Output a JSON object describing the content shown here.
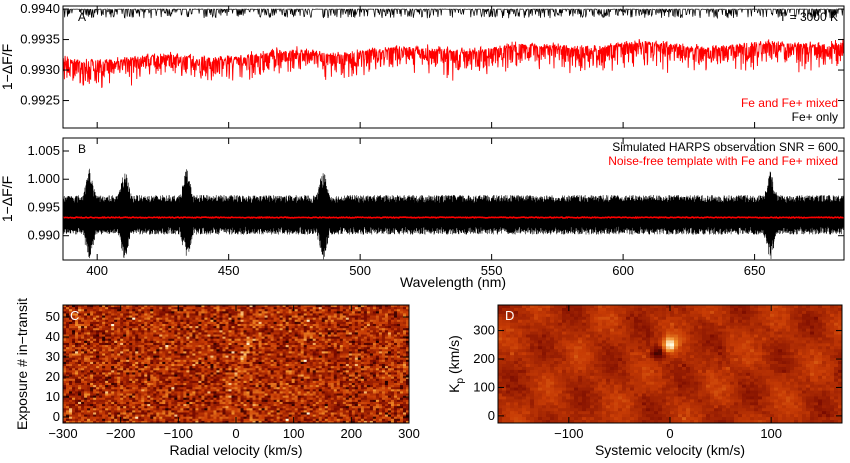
{
  "chart_data": [
    {
      "panel": "A",
      "type": "line",
      "ylabel": "1−ΔF/F",
      "xlim": [
        387,
        684
      ],
      "ylim": [
        0.99205,
        0.99405
      ],
      "yticks": [
        "0.9925",
        "0.9930",
        "0.9935",
        "0.9940"
      ],
      "ytick_values": [
        0.9925,
        0.993,
        0.9935,
        0.994
      ],
      "annotation": "T = 3000 K",
      "series": [
        {
          "name": "Fe and Fe+ mixed",
          "color": "#ff0000",
          "baseline": [
            [
              390,
              0.99315
            ],
            [
              450,
              0.99322
            ],
            [
              500,
              0.9933
            ],
            [
              550,
              0.99335
            ],
            [
              600,
              0.9934
            ],
            [
              650,
              0.99338
            ],
            [
              684,
              0.99345
            ]
          ]
        },
        {
          "name": "Fe+ only",
          "color": "#000000",
          "baseline": [
            [
              390,
              0.994
            ],
            [
              684,
              0.994
            ]
          ]
        }
      ]
    },
    {
      "panel": "B",
      "type": "line",
      "xlabel": "Wavelength (nm)",
      "ylabel": "1−ΔF/F",
      "xlim": [
        387,
        684
      ],
      "ylim": [
        0.9857,
        1.0073
      ],
      "xticks": [
        "400",
        "450",
        "500",
        "550",
        "600",
        "650"
      ],
      "xtick_values": [
        400,
        450,
        500,
        550,
        600,
        650
      ],
      "yticks": [
        "0.990",
        "0.995",
        "1.000",
        "1.005"
      ],
      "ytick_values": [
        0.99,
        0.995,
        1.0,
        1.005
      ],
      "series": [
        {
          "name": "Simulated HARPS observation SNR = 600",
          "color": "#000000",
          "mean": 0.9937,
          "spread": 0.0035
        },
        {
          "name": "Noise-free template with Fe and Fe+ mixed",
          "color": "#ff0000",
          "mean": 0.9933
        }
      ]
    },
    {
      "panel": "C",
      "type": "heatmap",
      "xlabel": "Radial velocity (km/s)",
      "ylabel": "Exposure # in−transit",
      "xlim": [
        -300,
        300
      ],
      "ylim": [
        -3,
        56
      ],
      "xticks": [
        "−300",
        "−200",
        "−100",
        "0",
        "100",
        "200",
        "300"
      ],
      "xtick_values": [
        -300,
        -200,
        -100,
        0,
        100,
        200,
        300
      ],
      "yticks": [
        "0",
        "10",
        "20",
        "30",
        "40",
        "50"
      ],
      "ytick_values": [
        0,
        10,
        20,
        30,
        40,
        50
      ],
      "colormap": "red-orange"
    },
    {
      "panel": "D",
      "type": "heatmap",
      "xlabel": "Systemic velocity (km/s)",
      "ylabel": "K",
      "ylabel_sub": "p",
      "ylabel_suffix": " (km/s)",
      "xlim": [
        -170,
        170
      ],
      "ylim": [
        -25,
        390
      ],
      "xticks": [
        "−100",
        "0",
        "100"
      ],
      "xtick_values": [
        -100,
        0,
        100
      ],
      "yticks": [
        "0",
        "100",
        "200",
        "300"
      ],
      "ytick_values": [
        0,
        100,
        200,
        300
      ],
      "peak": {
        "x": 0,
        "y": 250
      },
      "colormap": "red-orange"
    }
  ],
  "panelA": {
    "letter": "A",
    "annotation": "T = 3000 K",
    "legend_red": "Fe and Fe+ mixed",
    "legend_black": "Fe+ only"
  },
  "panelB": {
    "letter": "B",
    "legend_black": "Simulated HARPS observation SNR = 600",
    "legend_red": "Noise-free template with Fe and Fe+ mixed"
  },
  "panelC": {
    "letter": "C"
  },
  "panelD": {
    "letter": "D"
  }
}
